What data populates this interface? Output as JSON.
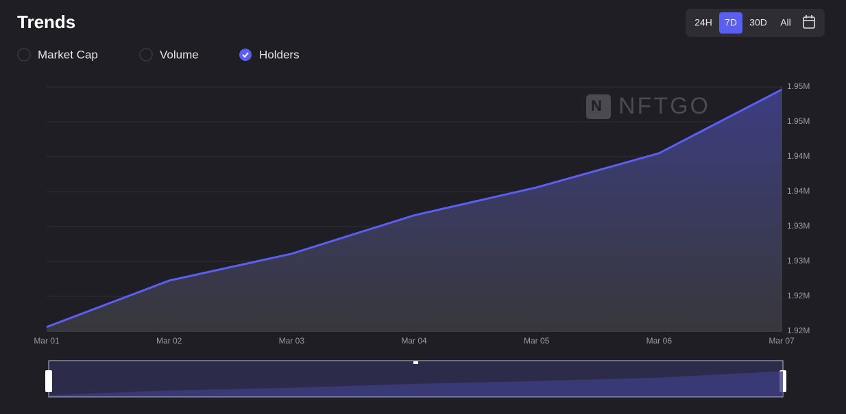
{
  "header": {
    "title": "Trends"
  },
  "metrics": [
    {
      "label": "Market Cap",
      "checked": false
    },
    {
      "label": "Volume",
      "checked": false
    },
    {
      "label": "Holders",
      "checked": true
    }
  ],
  "ranges": [
    {
      "label": "24H",
      "active": false
    },
    {
      "label": "7D",
      "active": true
    },
    {
      "label": "30D",
      "active": false
    },
    {
      "label": "All",
      "active": false
    }
  ],
  "watermark": "NFTGO",
  "chart_data": {
    "type": "line",
    "categories": [
      "Mar 01",
      "Mar 02",
      "Mar 03",
      "Mar 04",
      "Mar 05",
      "Mar 06",
      "Mar 07"
    ],
    "values": [
      1918100,
      1924750,
      1928600,
      1934100,
      1938100,
      1943000,
      1952100
    ],
    "color": "#5b5ff0",
    "ylim": [
      1917500,
      1952500
    ],
    "yticks": [
      {
        "value": 1917500,
        "label": "1.92M"
      },
      {
        "value": 1922500,
        "label": "1.92M"
      },
      {
        "value": 1927500,
        "label": "1.93M"
      },
      {
        "value": 1932500,
        "label": "1.93M"
      },
      {
        "value": 1937500,
        "label": "1.94M"
      },
      {
        "value": 1942500,
        "label": "1.94M"
      },
      {
        "value": 1947500,
        "label": "1.95M"
      },
      {
        "value": 1952500,
        "label": "1.95M"
      }
    ],
    "grid": true
  }
}
